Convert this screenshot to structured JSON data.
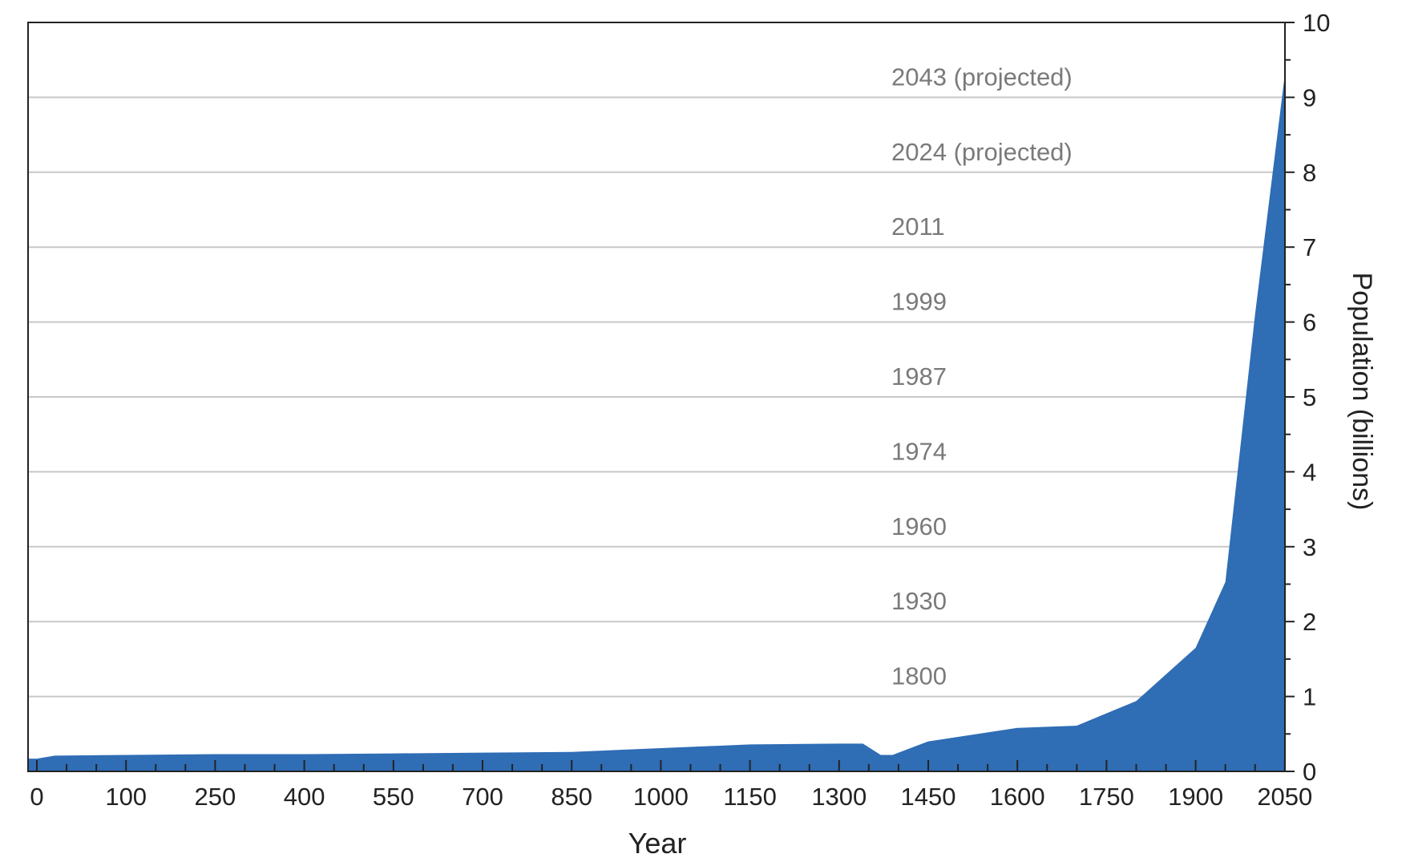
{
  "chart_data": {
    "type": "area",
    "title": "",
    "xlabel": "Year",
    "ylabel": "Population (billions)",
    "x_ticks": [
      "0",
      "100",
      "250",
      "400",
      "550",
      "700",
      "850",
      "1000",
      "1150",
      "1300",
      "1450",
      "1600",
      "1750",
      "1900",
      "2050"
    ],
    "y_ticks": [
      "0",
      "1",
      "2",
      "3",
      "4",
      "5",
      "6",
      "7",
      "8",
      "9",
      "10"
    ],
    "ylim": [
      0,
      10
    ],
    "grid": "horizontal",
    "series": [
      {
        "color": "#2f6db5",
        "points": [
          {
            "x": 0,
            "y": 0.17
          },
          {
            "x": 20,
            "y": 0.21
          },
          {
            "x": 100,
            "y": 0.22
          },
          {
            "x": 250,
            "y": 0.23
          },
          {
            "x": 400,
            "y": 0.23
          },
          {
            "x": 550,
            "y": 0.24
          },
          {
            "x": 700,
            "y": 0.25
          },
          {
            "x": 850,
            "y": 0.26
          },
          {
            "x": 1000,
            "y": 0.31
          },
          {
            "x": 1150,
            "y": 0.36
          },
          {
            "x": 1300,
            "y": 0.37
          },
          {
            "x": 1340,
            "y": 0.37
          },
          {
            "x": 1370,
            "y": 0.22
          },
          {
            "x": 1390,
            "y": 0.22
          },
          {
            "x": 1450,
            "y": 0.4
          },
          {
            "x": 1500,
            "y": 0.46
          },
          {
            "x": 1600,
            "y": 0.58
          },
          {
            "x": 1700,
            "y": 0.61
          },
          {
            "x": 1800,
            "y": 0.94
          },
          {
            "x": 1900,
            "y": 1.65
          },
          {
            "x": 1950,
            "y": 2.53
          },
          {
            "x": 2000,
            "y": 6.1
          },
          {
            "x": 2050,
            "y": 9.3
          }
        ]
      }
    ],
    "annotations": [
      {
        "label": "2043 (projected)",
        "y": 9
      },
      {
        "label": "2024 (projected)",
        "y": 8
      },
      {
        "label": "2011",
        "y": 7
      },
      {
        "label": "1999",
        "y": 6
      },
      {
        "label": "1987",
        "y": 5
      },
      {
        "label": "1974",
        "y": 4
      },
      {
        "label": "1960",
        "y": 3
      },
      {
        "label": "1930",
        "y": 2
      },
      {
        "label": "1800",
        "y": 1
      }
    ],
    "colors": {
      "area": "#2f6db5",
      "gridline": "#c8c8c8",
      "axis": "#222222",
      "annotation_text": "#7a7a7a",
      "tick_text": "#222222"
    }
  }
}
